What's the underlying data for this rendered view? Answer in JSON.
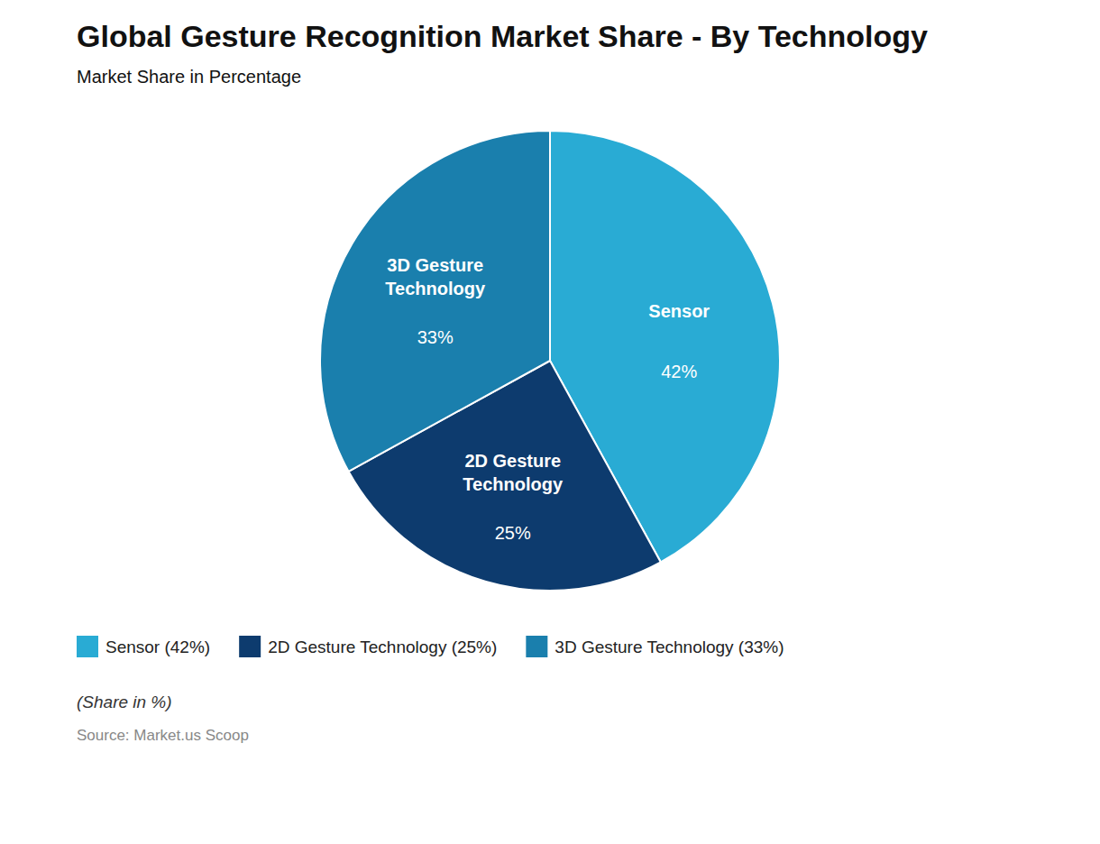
{
  "chart_data": {
    "type": "pie",
    "title": "Global Gesture Recognition Market Share - By Technology",
    "subtitle": "Market Share in Percentage",
    "footer_note": "(Share in %)",
    "source": "Source: Market.us Scoop",
    "categories": [
      "Sensor",
      "2D Gesture\nTechnology",
      "3D Gesture\nTechnology"
    ],
    "values": [
      42,
      25,
      33
    ],
    "value_labels": [
      "42%",
      "25%",
      "33%"
    ],
    "legend_labels": [
      "Sensor (42%)",
      "2D Gesture Technology (25%)",
      "3D Gesture Technology (33%)"
    ],
    "colors": [
      "#29ABD4",
      "#0D3B6E",
      "#1A7FAD"
    ],
    "data_labels": true,
    "legend": "bottom"
  }
}
